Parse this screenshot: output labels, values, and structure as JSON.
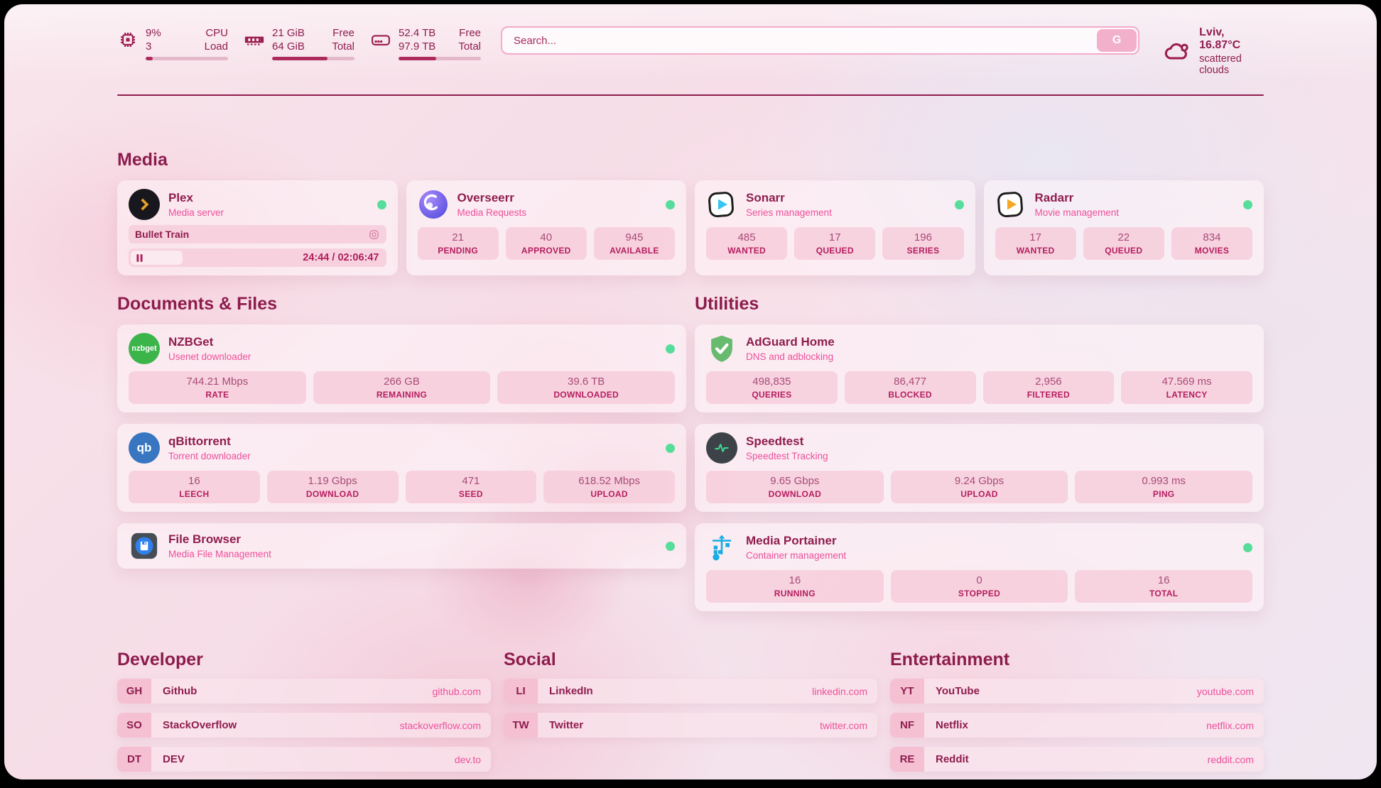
{
  "colors": {
    "accent": "#8f1d4e",
    "pink": "#ee4f9b",
    "status_green": "#57dd9b",
    "stat_box_pink": "#f6cad9"
  },
  "header": {
    "cpu": {
      "value_top": "9%",
      "value_bottom": "3",
      "label_top": "CPU",
      "label_bottom": "Load",
      "bar_percent": 9
    },
    "memory": {
      "value_top": "21 GiB",
      "value_bottom": "64 GiB",
      "label_top": "Free",
      "label_bottom": "Total",
      "bar_percent": 67
    },
    "storage": {
      "value_top": "52.4 TB",
      "value_bottom": "97.9 TB",
      "label_top": "Free",
      "label_bottom": "Total",
      "bar_percent": 46
    },
    "search": {
      "placeholder": "Search...",
      "button_label": "G"
    },
    "weather": {
      "location_temp": "Lviv, 16.87°C",
      "condition": "scattered clouds"
    }
  },
  "media": {
    "title": "Media",
    "plex": {
      "title": "Plex",
      "subtitle": "Media server",
      "now_playing": "Bullet Train",
      "time": "24:44 / 02:06:47",
      "progress_percent": 20
    },
    "overseerr": {
      "title": "Overseerr",
      "subtitle": "Media Requests",
      "stats": [
        {
          "value": "21",
          "label": "PENDING"
        },
        {
          "value": "40",
          "label": "APPROVED"
        },
        {
          "value": "945",
          "label": "AVAILABLE"
        }
      ]
    },
    "sonarr": {
      "title": "Sonarr",
      "subtitle": "Series management",
      "stats": [
        {
          "value": "485",
          "label": "WANTED"
        },
        {
          "value": "17",
          "label": "QUEUED"
        },
        {
          "value": "196",
          "label": "SERIES"
        }
      ]
    },
    "radarr": {
      "title": "Radarr",
      "subtitle": "Movie management",
      "stats": [
        {
          "value": "17",
          "label": "WANTED"
        },
        {
          "value": "22",
          "label": "QUEUED"
        },
        {
          "value": "834",
          "label": "MOVIES"
        }
      ]
    }
  },
  "documents": {
    "title": "Documents & Files",
    "nzbget": {
      "title": "NZBGet",
      "subtitle": "Usenet downloader",
      "stats": [
        {
          "value": "744.21 Mbps",
          "label": "RATE"
        },
        {
          "value": "266 GB",
          "label": "REMAINING"
        },
        {
          "value": "39.6 TB",
          "label": "DOWNLOADED"
        }
      ]
    },
    "qbittorrent": {
      "title": "qBittorrent",
      "subtitle": "Torrent downloader",
      "stats": [
        {
          "value": "16",
          "label": "LEECH"
        },
        {
          "value": "1.19 Gbps",
          "label": "DOWNLOAD"
        },
        {
          "value": "471",
          "label": "SEED"
        },
        {
          "value": "618.52 Mbps",
          "label": "UPLOAD"
        }
      ]
    },
    "filebrowser": {
      "title": "File Browser",
      "subtitle": "Media File Management"
    }
  },
  "utilities": {
    "title": "Utilities",
    "adguard": {
      "title": "AdGuard Home",
      "subtitle": "DNS and adblocking",
      "stats": [
        {
          "value": "498,835",
          "label": "QUERIES"
        },
        {
          "value": "86,477",
          "label": "BLOCKED"
        },
        {
          "value": "2,956",
          "label": "FILTERED"
        },
        {
          "value": "47.569 ms",
          "label": "LATENCY"
        }
      ]
    },
    "speedtest": {
      "title": "Speedtest",
      "subtitle": "Speedtest Tracking",
      "stats": [
        {
          "value": "9.65 Gbps",
          "label": "DOWNLOAD"
        },
        {
          "value": "9.24 Gbps",
          "label": "UPLOAD"
        },
        {
          "value": "0.993 ms",
          "label": "PING"
        }
      ]
    },
    "portainer": {
      "title": "Media Portainer",
      "subtitle": "Container management",
      "stats": [
        {
          "value": "16",
          "label": "RUNNING"
        },
        {
          "value": "0",
          "label": "STOPPED"
        },
        {
          "value": "16",
          "label": "TOTAL"
        }
      ]
    }
  },
  "links": {
    "developer": {
      "title": "Developer",
      "items": [
        {
          "abbr": "GH",
          "name": "Github",
          "url": "github.com"
        },
        {
          "abbr": "SO",
          "name": "StackOverflow",
          "url": "stackoverflow.com"
        },
        {
          "abbr": "DT",
          "name": "DEV",
          "url": "dev.to"
        }
      ]
    },
    "social": {
      "title": "Social",
      "items": [
        {
          "abbr": "LI",
          "name": "LinkedIn",
          "url": "linkedin.com"
        },
        {
          "abbr": "TW",
          "name": "Twitter",
          "url": "twitter.com"
        }
      ]
    },
    "entertainment": {
      "title": "Entertainment",
      "items": [
        {
          "abbr": "YT",
          "name": "YouTube",
          "url": "youtube.com"
        },
        {
          "abbr": "NF",
          "name": "Netflix",
          "url": "netflix.com"
        },
        {
          "abbr": "RE",
          "name": "Reddit",
          "url": "reddit.com"
        }
      ]
    }
  }
}
